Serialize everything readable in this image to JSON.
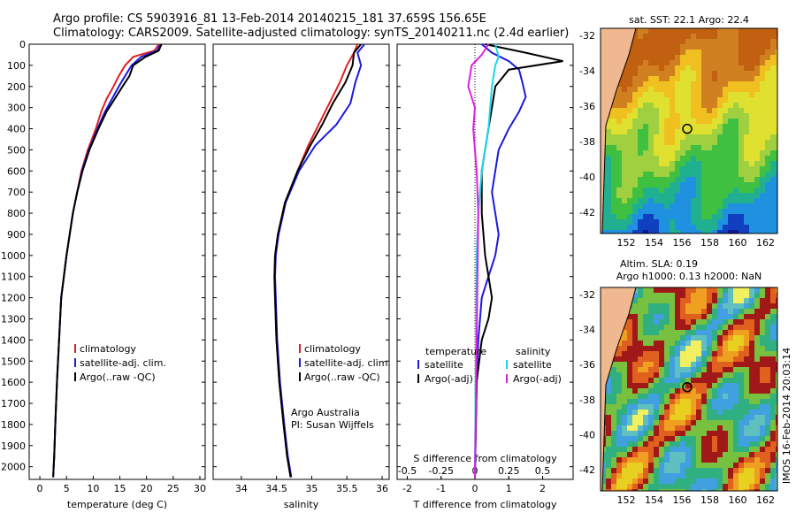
{
  "header": {
    "line1": "Argo profile: CS 5903916_81 13-Feb-2014 20140215_181 37.659S 156.65E",
    "line2": "Climatology: CARS2009. Satellite-adjusted climatology: synTS_20140211.nc (2.4d earlier)"
  },
  "colors": {
    "clim": "#e02020",
    "sat": "#1a1ae0",
    "argo": "#000000",
    "sat_s": "#18d8e8",
    "argo_s": "#e020e0"
  },
  "chart_data": [
    {
      "type": "line",
      "id": "temperature",
      "xlabel": "temperature (deg C)",
      "xlim": [
        -2,
        31
      ],
      "ylim": [
        2060,
        0
      ],
      "xticks": [
        0,
        5,
        10,
        15,
        20,
        25,
        30
      ],
      "yticks": [
        0,
        100,
        200,
        300,
        400,
        500,
        600,
        700,
        800,
        900,
        1000,
        1100,
        1200,
        1300,
        1400,
        1500,
        1600,
        1700,
        1800,
        1900,
        2000
      ],
      "legend": [
        "climatology",
        "satellite-adj. clim.",
        "Argo(..raw -QC)"
      ],
      "series": [
        {
          "key": "clim",
          "x": [
            22.3,
            21.5,
            17.5,
            16,
            14.8,
            13.8,
            12.5,
            11.5,
            10.5,
            9,
            7.8,
            7,
            6.2,
            5.6,
            5,
            4.5,
            4,
            3.6,
            3.2,
            2.9,
            2.7,
            2.5
          ],
          "y": [
            0,
            30,
            60,
            100,
            150,
            200,
            260,
            320,
            400,
            500,
            600,
            700,
            800,
            900,
            1000,
            1100,
            1200,
            1400,
            1600,
            1800,
            1950,
            2050
          ]
        },
        {
          "key": "sat",
          "x": [
            22.6,
            22,
            19,
            17.2,
            16,
            14.8,
            13.5,
            12.2,
            10.8,
            9.2,
            7.9,
            7,
            6.2,
            5.6,
            5,
            4.5,
            4,
            3.6,
            3.2,
            2.9,
            2.7,
            2.5
          ],
          "y": [
            0,
            30,
            60,
            100,
            150,
            200,
            260,
            320,
            400,
            500,
            600,
            700,
            800,
            900,
            1000,
            1100,
            1200,
            1400,
            1600,
            1800,
            1950,
            2050
          ]
        },
        {
          "key": "argo",
          "x": [
            22.8,
            22.3,
            19.8,
            17.5,
            16.8,
            15.5,
            14,
            12.5,
            11,
            9.3,
            8,
            7,
            6.2,
            5.6,
            5,
            4.5,
            4,
            3.6,
            3.2,
            2.9,
            2.7,
            2.5
          ],
          "y": [
            0,
            30,
            60,
            100,
            150,
            200,
            260,
            320,
            400,
            500,
            600,
            700,
            800,
            900,
            1000,
            1100,
            1200,
            1400,
            1600,
            1800,
            1950,
            2050
          ]
        }
      ]
    },
    {
      "type": "line",
      "id": "salinity",
      "xlabel": "salinity",
      "xlim": [
        33.6,
        36.1
      ],
      "ylim": [
        2060,
        0
      ],
      "xticks": [
        34,
        34.5,
        35,
        35.5,
        36
      ],
      "legend": [
        "climatology",
        "satellite-adj. clim.",
        "Argo(..raw -QC)"
      ],
      "annotation": [
        "Argo Australia",
        "PI: Susan Wijffels"
      ],
      "series": [
        {
          "key": "clim",
          "x": [
            35.65,
            35.6,
            35.5,
            35.4,
            35.25,
            35.1,
            34.95,
            34.8,
            34.62,
            34.52,
            34.48,
            34.47,
            34.48,
            34.5,
            34.54,
            34.6,
            34.65,
            34.7
          ],
          "y": [
            0,
            40,
            100,
            180,
            280,
            380,
            480,
            600,
            750,
            900,
            1000,
            1100,
            1200,
            1400,
            1600,
            1800,
            1950,
            2050
          ]
        },
        {
          "key": "sat",
          "x": [
            35.75,
            35.65,
            35.7,
            35.62,
            35.55,
            35.35,
            35.05,
            34.82,
            34.63,
            34.53,
            34.49,
            34.48,
            34.49,
            34.51,
            34.55,
            34.61,
            34.66,
            34.71
          ],
          "y": [
            0,
            40,
            100,
            180,
            280,
            380,
            480,
            600,
            750,
            900,
            1000,
            1100,
            1200,
            1400,
            1600,
            1800,
            1950,
            2050
          ]
        },
        {
          "key": "argo",
          "x": [
            35.7,
            35.6,
            35.58,
            35.48,
            35.3,
            35.15,
            34.98,
            34.8,
            34.62,
            34.52,
            34.48,
            34.47,
            34.48,
            34.5,
            34.54,
            34.6,
            34.65,
            34.7
          ],
          "y": [
            0,
            40,
            100,
            180,
            280,
            380,
            480,
            600,
            750,
            900,
            1000,
            1100,
            1200,
            1400,
            1600,
            1800,
            1950,
            2050
          ]
        }
      ]
    },
    {
      "type": "line",
      "id": "difference",
      "xlabel": "T difference from climatology",
      "xlabel_top": "S difference from climatology",
      "xlim": [
        -2.3,
        2.9
      ],
      "ylim": [
        2060,
        0
      ],
      "xticks": [
        -2,
        -1,
        0,
        1,
        2
      ],
      "xticks_s_labels": [
        "-0.5",
        "-0.25",
        "0",
        "0.25",
        "0.5"
      ],
      "legend_headers": [
        "temperature",
        "salinity"
      ],
      "legend": [
        "satellite",
        "Argo(-adj)",
        "satellite",
        "Argo(-adj)"
      ],
      "series": [
        {
          "key": "sat",
          "x": [
            0.2,
            0.5,
            1,
            1.3,
            1.4,
            1.5,
            1.3,
            1.0,
            0.7,
            0.6,
            0.5,
            0.6,
            0.7,
            0.6,
            0.4,
            0.2,
            0.1,
            0.05,
            0
          ],
          "y": [
            0,
            40,
            80,
            120,
            180,
            250,
            320,
            400,
            500,
            600,
            700,
            800,
            900,
            1000,
            1100,
            1200,
            1400,
            1600,
            2050
          ]
        },
        {
          "key": "argo",
          "x": [
            0.3,
            1.5,
            2.6,
            1.0,
            0.6,
            0.5,
            0.4,
            0.3,
            0.2,
            0.2,
            0.3,
            0.5,
            0.4,
            0.2,
            0.05,
            0
          ],
          "y": [
            0,
            40,
            80,
            120,
            200,
            300,
            400,
            500,
            600,
            800,
            1000,
            1200,
            1300,
            1400,
            1600,
            2050
          ]
        },
        {
          "key": "sat_s",
          "x": [
            0.6,
            0.7,
            0.6,
            0.5,
            0.45,
            0.4,
            0.3,
            0.2,
            0.1,
            0.05,
            0
          ],
          "y": [
            0,
            60,
            100,
            200,
            300,
            400,
            500,
            600,
            800,
            1000,
            2050
          ]
        },
        {
          "key": "argo_s",
          "x": [
            0.4,
            0.2,
            -0.1,
            -0.2,
            0,
            -0.05,
            0.05,
            0.1,
            0
          ],
          "y": [
            0,
            50,
            100,
            200,
            300,
            400,
            600,
            800,
            2050
          ]
        }
      ]
    }
  ],
  "maps": {
    "top": {
      "title": "sat. SST: 22.1  Argo: 22.4",
      "xticks": [
        "152",
        "154",
        "156",
        "158",
        "160",
        "162"
      ],
      "yticks": [
        "-32",
        "-34",
        "-36",
        "-38",
        "-40",
        "-42"
      ]
    },
    "bottom": {
      "title_l1": "Altim. SLA: 0.19",
      "title_l2": "Argo h1000: 0.13 h2000: NaN",
      "xticks": [
        "152",
        "154",
        "156",
        "158",
        "160",
        "162"
      ],
      "yticks": [
        "-32",
        "-34",
        "-36",
        "-38",
        "-40",
        "-42"
      ]
    },
    "stamp": "IMOS 16-Feb-2014 20:03:14"
  }
}
